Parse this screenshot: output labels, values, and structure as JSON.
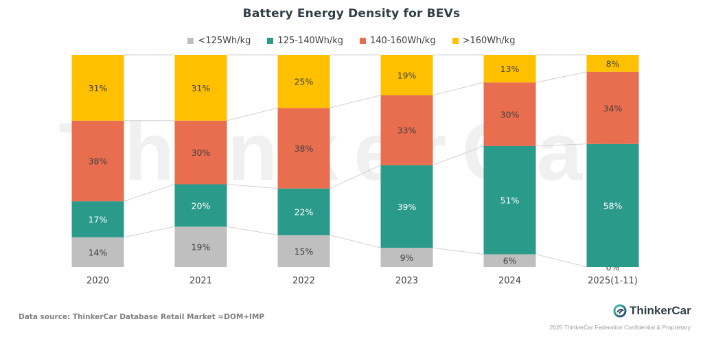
{
  "chart_data": {
    "type": "bar",
    "stacked": true,
    "normalized": true,
    "title": "Battery Energy Density for BEVs",
    "xlabel": "",
    "ylabel": "",
    "ylim": [
      0,
      100
    ],
    "grid": false,
    "legend_position": "top",
    "categories": [
      "2020",
      "2021",
      "2022",
      "2023",
      "2024",
      "2025(1-11)"
    ],
    "series": [
      {
        "name": "<125Wh/kg",
        "color": "#BFBFBF",
        "label_color": "#404040",
        "values": [
          14,
          19,
          15,
          9,
          6,
          0
        ]
      },
      {
        "name": "125-140Wh/kg",
        "color": "#2A9A8A",
        "label_color": "#ffffff",
        "values": [
          17,
          20,
          22,
          39,
          51,
          58
        ]
      },
      {
        "name": "140-160Wh/kg",
        "color": "#E86E4F",
        "label_color": "#404040",
        "values": [
          38,
          30,
          38,
          33,
          30,
          34
        ]
      },
      {
        "name": ">160Wh/kg",
        "color": "#FFC000",
        "label_color": "#404040",
        "values": [
          31,
          31,
          25,
          19,
          13,
          8
        ]
      }
    ],
    "value_suffix": "%",
    "series_lines": true,
    "watermark": "ThinkerCar"
  },
  "footer": {
    "source": "Data source: ThinkerCar Database",
    "note": "Retail Market =DOM+IMP",
    "brand": "ThinkerCar",
    "copyright": "2025 ThinkerCar Federation Confidential & Proprietary"
  },
  "icons": {
    "logo": "thinkercar-logo-icon"
  }
}
